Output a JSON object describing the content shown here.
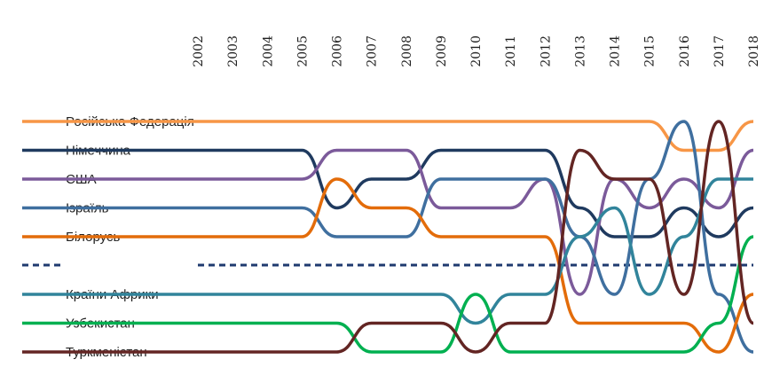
{
  "chart_data": {
    "type": "bump",
    "categories": [
      "2002",
      "2003",
      "2004",
      "2005",
      "2006",
      "2007",
      "2008",
      "2009",
      "2010",
      "2011",
      "2012",
      "2013",
      "2014",
      "2015",
      "2016",
      "2017",
      "2018"
    ],
    "ylim": [
      1,
      9
    ],
    "series": [
      {
        "name": "Російська Федерація",
        "color": "#f79646",
        "values": [
          1,
          1,
          1,
          1,
          1,
          1,
          1,
          1,
          1,
          1,
          1,
          1,
          1,
          1,
          2,
          2,
          1
        ]
      },
      {
        "name": "Німеччина",
        "color": "#1f3a5f",
        "values": [
          2,
          2,
          2,
          2,
          4,
          3,
          3,
          2,
          2,
          2,
          2,
          4,
          5,
          5,
          4,
          5,
          4
        ]
      },
      {
        "name": "США",
        "color": "#7b5a9a",
        "values": [
          3,
          3,
          3,
          3,
          2,
          2,
          2,
          4,
          4,
          4,
          3,
          7,
          3,
          4,
          3,
          4,
          2
        ]
      },
      {
        "name": "Ізраїль",
        "color": "#3f6f9f",
        "values": [
          4,
          4,
          4,
          4,
          5,
          5,
          5,
          3,
          3,
          3,
          3,
          5,
          7,
          3,
          1,
          7,
          9
        ]
      },
      {
        "name": "Білорусь",
        "color": "#e36c0a",
        "values": [
          5,
          5,
          5,
          5,
          3,
          4,
          4,
          5,
          5,
          5,
          5,
          8,
          8,
          8,
          8,
          9,
          7
        ]
      },
      {
        "name": "Країни Африки",
        "color": "#31849b",
        "values": [
          7,
          7,
          7,
          7,
          7,
          7,
          7,
          7,
          8,
          7,
          7,
          5,
          4,
          7,
          5,
          3,
          3
        ]
      },
      {
        "name": "Узбекистан",
        "color": "#00b050",
        "values": [
          8,
          8,
          8,
          8,
          8,
          9,
          9,
          9,
          7,
          9,
          9,
          9,
          9,
          9,
          9,
          8,
          5
        ]
      },
      {
        "name": "Туркменістан",
        "color": "#632523",
        "values": [
          9,
          9,
          9,
          9,
          9,
          8,
          8,
          8,
          9,
          8,
          8,
          2,
          3,
          3,
          7,
          1,
          8
        ]
      }
    ]
  }
}
